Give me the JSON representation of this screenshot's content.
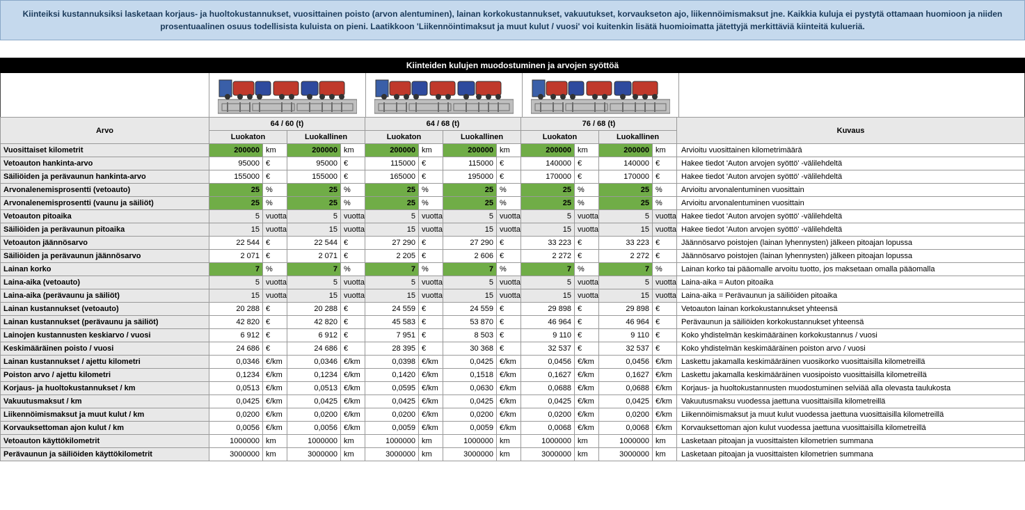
{
  "banner": "Kiinteiksi kustannuksiksi lasketaan korjaus- ja huoltokustannukset, vuosittainen poisto (arvon alentuminen), lainan korkokustannukset, vakuutukset, korvaukseton ajo, liikennöimismaksut jne. Kaikkia kuluja ei pystytä ottamaan huomioon ja niiden prosentuaalinen osuus todellisista kuluista on pieni. Laatikkoon 'Liikennöintimaksut ja muut kulut / vuosi' voi kuitenkin lisätä huomioimatta jätettyjä merkittäviä kiinteitä kulueriä.",
  "sectionTitle": "Kiinteiden kulujen muodostuminen ja arvojen syöttöä",
  "head": {
    "arvo": "Arvo",
    "kuvaus": "Kuvaus",
    "weights": [
      "64 / 60 (t)",
      "64 / 68 (t)",
      "76 / 68 (t)"
    ],
    "sub": [
      "Luokaton",
      "Luokallinen"
    ]
  },
  "truck_colors": {
    "cab": "#3a5fa8",
    "tank_red": "#c0392b",
    "tank_blue": "#2e4a9e",
    "chassis": "#bfbfbf",
    "line": "#6b6b6b"
  },
  "rows": [
    {
      "label": "Vuosittaiset kilometrit",
      "vals": [
        "200000",
        "200000",
        "200000",
        "200000",
        "200000",
        "200000"
      ],
      "unit": "km",
      "green": true,
      "desc": "Arvioitu vuosittainen kilometrimäärä"
    },
    {
      "label": "Vetoauton hankinta-arvo",
      "vals": [
        "95000",
        "95000",
        "115000",
        "115000",
        "140000",
        "140000"
      ],
      "unit": "€",
      "desc": "Hakee tiedot 'Auton arvojen syöttö' -välilehdeltä"
    },
    {
      "label": "Säiliöiden ja perävaunun hankinta-arvo",
      "vals": [
        "155000",
        "155000",
        "165000",
        "195000",
        "170000",
        "170000"
      ],
      "unit": "€",
      "desc": "Hakee tiedot 'Auton arvojen syöttö' -välilehdeltä"
    },
    {
      "label": "Arvonalenemisprosentti (vetoauto)",
      "vals": [
        "25",
        "25",
        "25",
        "25",
        "25",
        "25"
      ],
      "unit": "%",
      "green": true,
      "desc": "Arvioitu arvonalentuminen vuosittain"
    },
    {
      "label": "Arvonalenemisprosentti (vaunu ja säiliöt)",
      "vals": [
        "25",
        "25",
        "25",
        "25",
        "25",
        "25"
      ],
      "unit": "%",
      "green": true,
      "desc": "Arvioitu arvonalentuminen vuosittain"
    },
    {
      "label": "Vetoauton pitoaika",
      "vals": [
        "5",
        "5",
        "5",
        "5",
        "5",
        "5"
      ],
      "unit": "vuotta",
      "grey": true,
      "desc": "Hakee tiedot 'Auton arvojen syöttö' -välilehdeltä"
    },
    {
      "label": "Säiliöiden ja perävaunun pitoaika",
      "vals": [
        "15",
        "15",
        "15",
        "15",
        "15",
        "15"
      ],
      "unit": "vuotta",
      "grey": true,
      "desc": "Hakee tiedot 'Auton arvojen syöttö' -välilehdeltä"
    },
    {
      "label": "Vetoauton jäännösarvo",
      "vals": [
        "22 544",
        "22 544",
        "27 290",
        "27 290",
        "33 223",
        "33 223"
      ],
      "unit": "€",
      "desc": "Jäännösarvo poistojen (lainan lyhennysten) jälkeen pitoajan lopussa"
    },
    {
      "label": "Säiliöiden ja perävaunun jäännösarvo",
      "vals": [
        "2 071",
        "2 071",
        "2 205",
        "2 606",
        "2 272",
        "2 272"
      ],
      "unit": "€",
      "desc": "Jäännösarvo poistojen (lainan lyhennysten) jälkeen pitoajan lopussa"
    },
    {
      "label": "Lainan korko",
      "vals": [
        "7",
        "7",
        "7",
        "7",
        "7",
        "7"
      ],
      "unit": "%",
      "green": true,
      "desc": "Lainan korko tai pääomalle arvoitu tuotto, jos maksetaan omalla pääomalla"
    },
    {
      "label": "Laina-aika (vetoauto)",
      "vals": [
        "5",
        "5",
        "5",
        "5",
        "5",
        "5"
      ],
      "unit": "vuotta",
      "grey": true,
      "desc": "Laina-aika = Auton pitoaika"
    },
    {
      "label": "Laina-aika (perävaunu ja säiliöt)",
      "vals": [
        "15",
        "15",
        "15",
        "15",
        "15",
        "15"
      ],
      "unit": "vuotta",
      "grey": true,
      "desc": "Laina-aika = Perävaunun ja säiliöiden pitoaika"
    },
    {
      "label": "Lainan kustannukset (vetoauto)",
      "vals": [
        "20 288",
        "20 288",
        "24 559",
        "24 559",
        "29 898",
        "29 898"
      ],
      "unit": "€",
      "desc": "Vetoauton lainan korkokustannukset yhteensä"
    },
    {
      "label": "Lainan kustannukset (perävaunu ja säiliöt)",
      "vals": [
        "42 820",
        "42 820",
        "45 583",
        "53 870",
        "46 964",
        "46 964"
      ],
      "unit": "€",
      "desc": "Perävaunun ja säiliöiden korkokustannukset yhteensä"
    },
    {
      "label": "Lainojen kustannusten keskiarvo / vuosi",
      "vals": [
        "6 912",
        "6 912",
        "7 951",
        "8 503",
        "9 110",
        "9 110"
      ],
      "unit": "€",
      "desc": "Koko yhdistelmän keskimääräinen korkokustannus / vuosi"
    },
    {
      "label": "Keskimääräinen poisto / vuosi",
      "vals": [
        "24 686",
        "24 686",
        "28 395",
        "30 368",
        "32 537",
        "32 537"
      ],
      "unit": "€",
      "desc": "Koko yhdistelmän keskimääräinen poiston arvo / vuosi"
    },
    {
      "label": "Lainan kustannukset / ajettu kilometri",
      "vals": [
        "0,0346",
        "0,0346",
        "0,0398",
        "0,0425",
        "0,0456",
        "0,0456"
      ],
      "unit": "€/km",
      "desc": "Laskettu jakamalla keskimääräinen vuosikorko vuosittaisilla kilometreillä"
    },
    {
      "label": "Poiston arvo / ajettu kilometri",
      "vals": [
        "0,1234",
        "0,1234",
        "0,1420",
        "0,1518",
        "0,1627",
        "0,1627"
      ],
      "unit": "€/km",
      "desc": "Laskettu jakamalla keskimääräinen vuosipoisto vuosittaisilla kilometreillä"
    },
    {
      "label": "Korjaus- ja huoltokustannukset / km",
      "vals": [
        "0,0513",
        "0,0513",
        "0,0595",
        "0,0630",
        "0,0688",
        "0,0688"
      ],
      "unit": "€/km",
      "desc": "Korjaus- ja huoltokustannusten muodostuminen selviää alla olevasta taulukosta"
    },
    {
      "label": "Vakuutusmaksut / km",
      "vals": [
        "0,0425",
        "0,0425",
        "0,0425",
        "0,0425",
        "0,0425",
        "0,0425"
      ],
      "unit": "€/km",
      "desc": "Vakuutusmaksu vuodessa jaettuna vuosittaisilla kilometreillä"
    },
    {
      "label": "Liikennöimismaksut ja muut kulut / km",
      "vals": [
        "0,0200",
        "0,0200",
        "0,0200",
        "0,0200",
        "0,0200",
        "0,0200"
      ],
      "unit": "€/km",
      "desc": "Liikennöimismaksut ja muut kulut vuodessa jaettuna vuosittaisilla kilometreillä"
    },
    {
      "label": "Korvauksettoman ajon kulut / km",
      "vals": [
        "0,0056",
        "0,0056",
        "0,0059",
        "0,0059",
        "0,0068",
        "0,0068"
      ],
      "unit": "€/km",
      "desc": "Korvauksettoman ajon kulut vuodessa jaettuna vuosittaisilla kilometreillä"
    },
    {
      "label": "Vetoauton käyttökilometrit",
      "vals": [
        "1000000",
        "1000000",
        "1000000",
        "1000000",
        "1000000",
        "1000000"
      ],
      "unit": "km",
      "desc": "Lasketaan pitoajan ja vuosittaisten kilometrien summana"
    },
    {
      "label": "Perävaunun ja säiliöiden käyttökilometrit",
      "vals": [
        "3000000",
        "3000000",
        "3000000",
        "3000000",
        "3000000",
        "3000000"
      ],
      "unit": "km",
      "desc": "Lasketaan pitoajan ja vuosittaisten kilometrien summana"
    }
  ]
}
